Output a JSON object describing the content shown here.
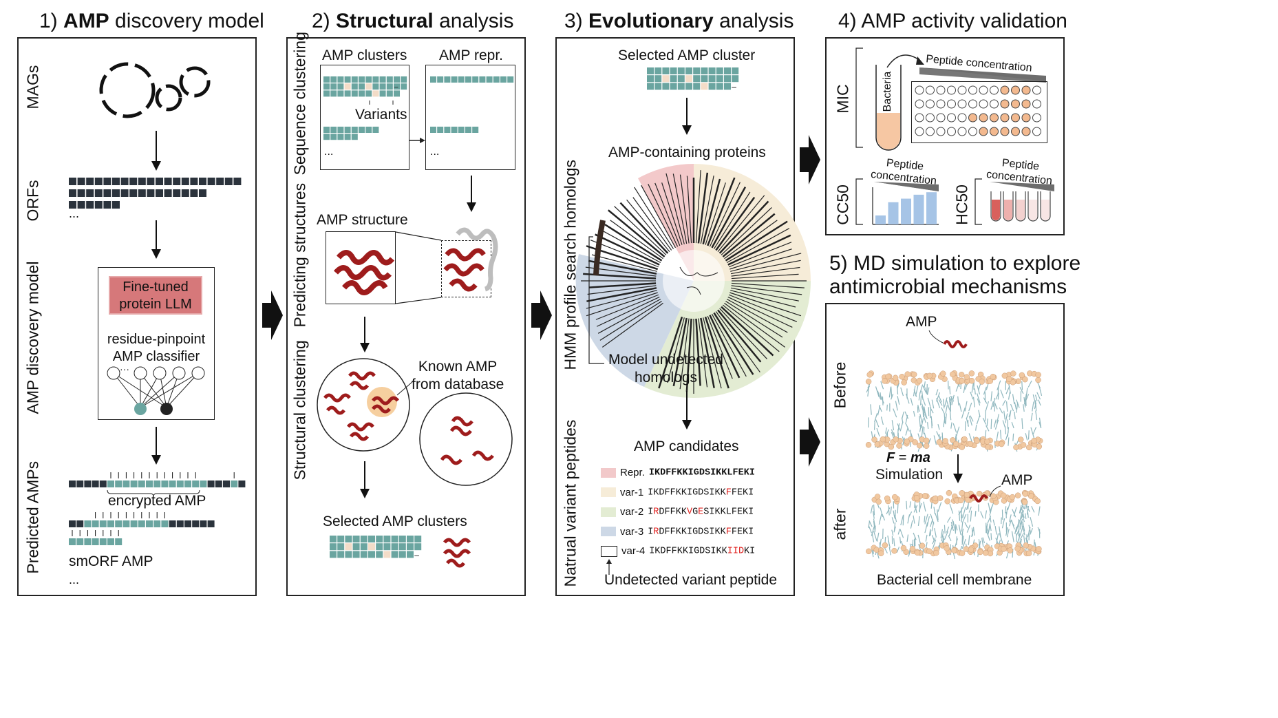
{
  "panel1": {
    "num": "1)",
    "bold": "AMP",
    "rest": "discovery model",
    "side_labels": {
      "mags": "MAGs",
      "orfs": "ORFs",
      "model": "AMP discovery model",
      "predicted": "Predicted AMPs"
    },
    "llm_label_1": "Fine-tuned",
    "llm_label_2": "protein LLM",
    "classifier_1": "residue-pinpoint",
    "classifier_2": "AMP classifier",
    "node_ellipsis": "···",
    "ellipsis": "...",
    "encrypted": "encrypted AMP",
    "smorf": "smORF AMP"
  },
  "panel2": {
    "num": "2)",
    "bold": "Structural",
    "rest": "analysis",
    "side_labels": {
      "seq": "Sequence clustering",
      "pred": "Predicting structures",
      "struct": "Structural clustering"
    },
    "clusters": "AMP clusters",
    "repr": "AMP repr.",
    "variants": "Variants",
    "minus": "–",
    "ellipsis": "...",
    "structure": "AMP structure",
    "known_1": "Known AMP",
    "known_2": "from database",
    "selected": "Selected AMP clusters"
  },
  "panel3": {
    "num": "3)",
    "bold": "Evolutionary",
    "rest": "analysis",
    "side_labels": {
      "hmm": "HMM profile search homologs",
      "natural": "Natrual variant peptides"
    },
    "selected": "Selected AMP cluster",
    "containing": "AMP-containing proteins",
    "undetected_1": "Model undetected",
    "undetected_2": "homologs",
    "candidates": "AMP candidates",
    "undetected_peptide": "Undetected variant peptide",
    "peptides": [
      {
        "label": "Repr.",
        "seq": "IKDFFKKIGDSIKKLFEKI",
        "color": "#f2c9ca",
        "bold": true
      },
      {
        "label": "var-1",
        "seq": "IKDFFKKIGDSIKKFFEKI",
        "color": "#f6ecd8",
        "bold": false
      },
      {
        "label": "var-2",
        "seq": "IRDFFKKVGESIKKLFEKI",
        "color": "#e3ecd3",
        "bold": false
      },
      {
        "label": "var-3",
        "seq": "IRDFFKKIGDSIKKFFEKI",
        "color": "#cdd8e6",
        "bold": false
      },
      {
        "label": "var-4",
        "seq": "IKDFFKKIGDSIKKIIDKI",
        "color": "#ffffff",
        "bold": false
      }
    ]
  },
  "panel4": {
    "num": "4)",
    "title": "AMP activity validation",
    "mic": "MIC",
    "cc50": "CC50",
    "hc50": "HC50",
    "bacteria": "Bacteria",
    "peptide_conc": "Peptide concentration",
    "peptide": "Peptide",
    "concentration": "concentration",
    "cc50_bars": [
      0.25,
      0.62,
      0.72,
      0.83,
      0.9
    ],
    "hc50_fills": [
      1.0,
      0.55,
      0.3,
      0.15,
      0.05
    ]
  },
  "panel5": {
    "num": "5)",
    "title_1": "MD simulation to explore",
    "title_2": "antimicrobial mechanisms",
    "before": "Before",
    "after": "after",
    "amp": "AMP",
    "formula_f": "F",
    "formula_eq": " = ",
    "formula_ma": "ma",
    "simulation": "Simulation",
    "membrane": "Bacterial cell membrane"
  },
  "colors": {
    "teal": "#6aa5a0",
    "dark": "#2b333c",
    "beige": "#f3dcc8",
    "red": "#9e1c1c",
    "orange": "#f3b98f"
  }
}
